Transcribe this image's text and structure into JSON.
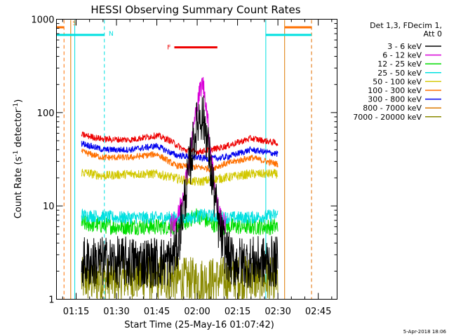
{
  "chart_data": {
    "type": "line",
    "title": "HESSI Observing Summary Count Rates",
    "xlabel": "Start Time (25-May-16 01:07:42)",
    "ylabel": "Count Rate (s^-1 detector^-1)",
    "ylabel_parts": [
      "Count Rate (s",
      "-1",
      " detector",
      "-1",
      ")"
    ],
    "y_scale": "log",
    "ylim": [
      1,
      1000
    ],
    "y_ticks": [
      "1",
      "10",
      "100",
      "1000"
    ],
    "x_ticks": [
      "01:15",
      "01:30",
      "01:45",
      "02:00",
      "02:15",
      "02:30",
      "02:45"
    ],
    "x_tick_minutes": [
      75,
      90,
      105,
      120,
      135,
      150,
      165
    ],
    "x_range_minutes": [
      67.7,
      172
    ],
    "legend_header": [
      "Det 1,3, FDecim 1,",
      "Att 0"
    ],
    "legend_position": "right",
    "timestamp": "5-Apr-2018 18:06",
    "series": [
      {
        "name": "3 - 6 keV",
        "color": "#000000",
        "x": [
          77,
          85,
          95,
          105,
          110,
          113,
          115,
          117,
          119,
          121,
          123,
          125,
          128,
          131,
          133,
          140,
          150
        ],
        "y": [
          2.5,
          2.5,
          2.5,
          2.5,
          2.5,
          4,
          10,
          25,
          55,
          100,
          75,
          25,
          6,
          3,
          2.5,
          2.5,
          2.5
        ]
      },
      {
        "name": "6 - 12 keV",
        "color": "#d800d8",
        "x": [
          110,
          113,
          115,
          117,
          119,
          121,
          122,
          123,
          125,
          127,
          129,
          131
        ],
        "y": [
          6,
          8,
          15,
          30,
          80,
          170,
          210,
          150,
          40,
          12,
          7,
          6
        ]
      },
      {
        "name": "12 - 25 keV",
        "color": "#00dd00",
        "x": [
          77,
          90,
          100,
          110,
          115,
          120,
          125,
          130,
          140,
          150
        ],
        "y": [
          6.5,
          6,
          6,
          6,
          6.5,
          8,
          6.5,
          6,
          6,
          6
        ]
      },
      {
        "name": "25 - 50 keV",
        "color": "#00e0e0",
        "x": [
          77,
          90,
          100,
          110,
          118,
          122,
          130,
          140,
          150
        ],
        "y": [
          8,
          7.5,
          7.5,
          7.5,
          7.5,
          8,
          7.5,
          7.5,
          8
        ]
      },
      {
        "name": "50 - 100 keV",
        "color": "#d2c800",
        "x": [
          77,
          85,
          95,
          105,
          115,
          120,
          125,
          130,
          140,
          150
        ],
        "y": [
          23,
          21,
          22,
          22,
          19,
          18,
          19,
          20,
          22,
          22
        ]
      },
      {
        "name": "100 - 300 keV",
        "color": "#ff7000",
        "x": [
          77,
          85,
          95,
          105,
          112,
          120,
          125,
          130,
          140,
          150
        ],
        "y": [
          38,
          33,
          33,
          36,
          27,
          26,
          25,
          28,
          33,
          28
        ]
      },
      {
        "name": "300 - 800 keV",
        "color": "#0000ee",
        "x": [
          77,
          85,
          95,
          105,
          112,
          120,
          125,
          130,
          140,
          150
        ],
        "y": [
          47,
          40,
          40,
          44,
          35,
          33,
          32,
          33,
          40,
          36
        ]
      },
      {
        "name": "800 - 7000 keV",
        "color": "#dd7a00",
        "x": [],
        "y": []
      },
      {
        "name": "7000 - 20000 keV",
        "color": "#8a8a00",
        "x": [
          77,
          85,
          95,
          105,
          115,
          125,
          135,
          145,
          150
        ],
        "y": [
          1.6,
          1.6,
          1.7,
          1.7,
          1.6,
          1.6,
          1.7,
          1.6,
          1.6
        ]
      },
      {
        "name": "",
        "color": "#ee0000",
        "x": [
          77,
          85,
          95,
          105,
          110,
          115,
          120,
          125,
          130,
          140,
          150
        ],
        "y": [
          58,
          52,
          51,
          57,
          50,
          40,
          38,
          40,
          43,
          53,
          47
        ]
      }
    ],
    "flags": [
      {
        "label": "S",
        "color": "#ff7000",
        "segments": [
          [
            67.7,
            70.5
          ],
          [
            152.5,
            162.5
          ]
        ],
        "level": 820
      },
      {
        "label": "N",
        "color": "#00e0e0",
        "segments": [
          [
            67.7,
            85.5
          ],
          [
            145.5,
            162.5
          ]
        ],
        "level": 680
      },
      {
        "label": "F",
        "color": "#ee0000",
        "segments": [
          [
            111.5,
            127.5
          ]
        ],
        "level": 500
      }
    ],
    "verticals": [
      {
        "color": "#ff7000",
        "style": "dashed",
        "x": 70.5
      },
      {
        "color": "#dd7a00",
        "style": "solid",
        "x": 73
      },
      {
        "color": "#00e0e0",
        "style": "solid",
        "x": 74.5
      },
      {
        "color": "#00e0e0",
        "style": "dashed",
        "x": 85.5
      },
      {
        "color": "#00e0e0",
        "style": "solid",
        "x": 145.5
      },
      {
        "color": "#dd7a00",
        "style": "solid",
        "x": 152.5
      },
      {
        "color": "#00e0e0",
        "style": "dashed",
        "x": 162.5
      },
      {
        "color": "#ff7000",
        "style": "dashed",
        "x": 162.5
      }
    ]
  }
}
